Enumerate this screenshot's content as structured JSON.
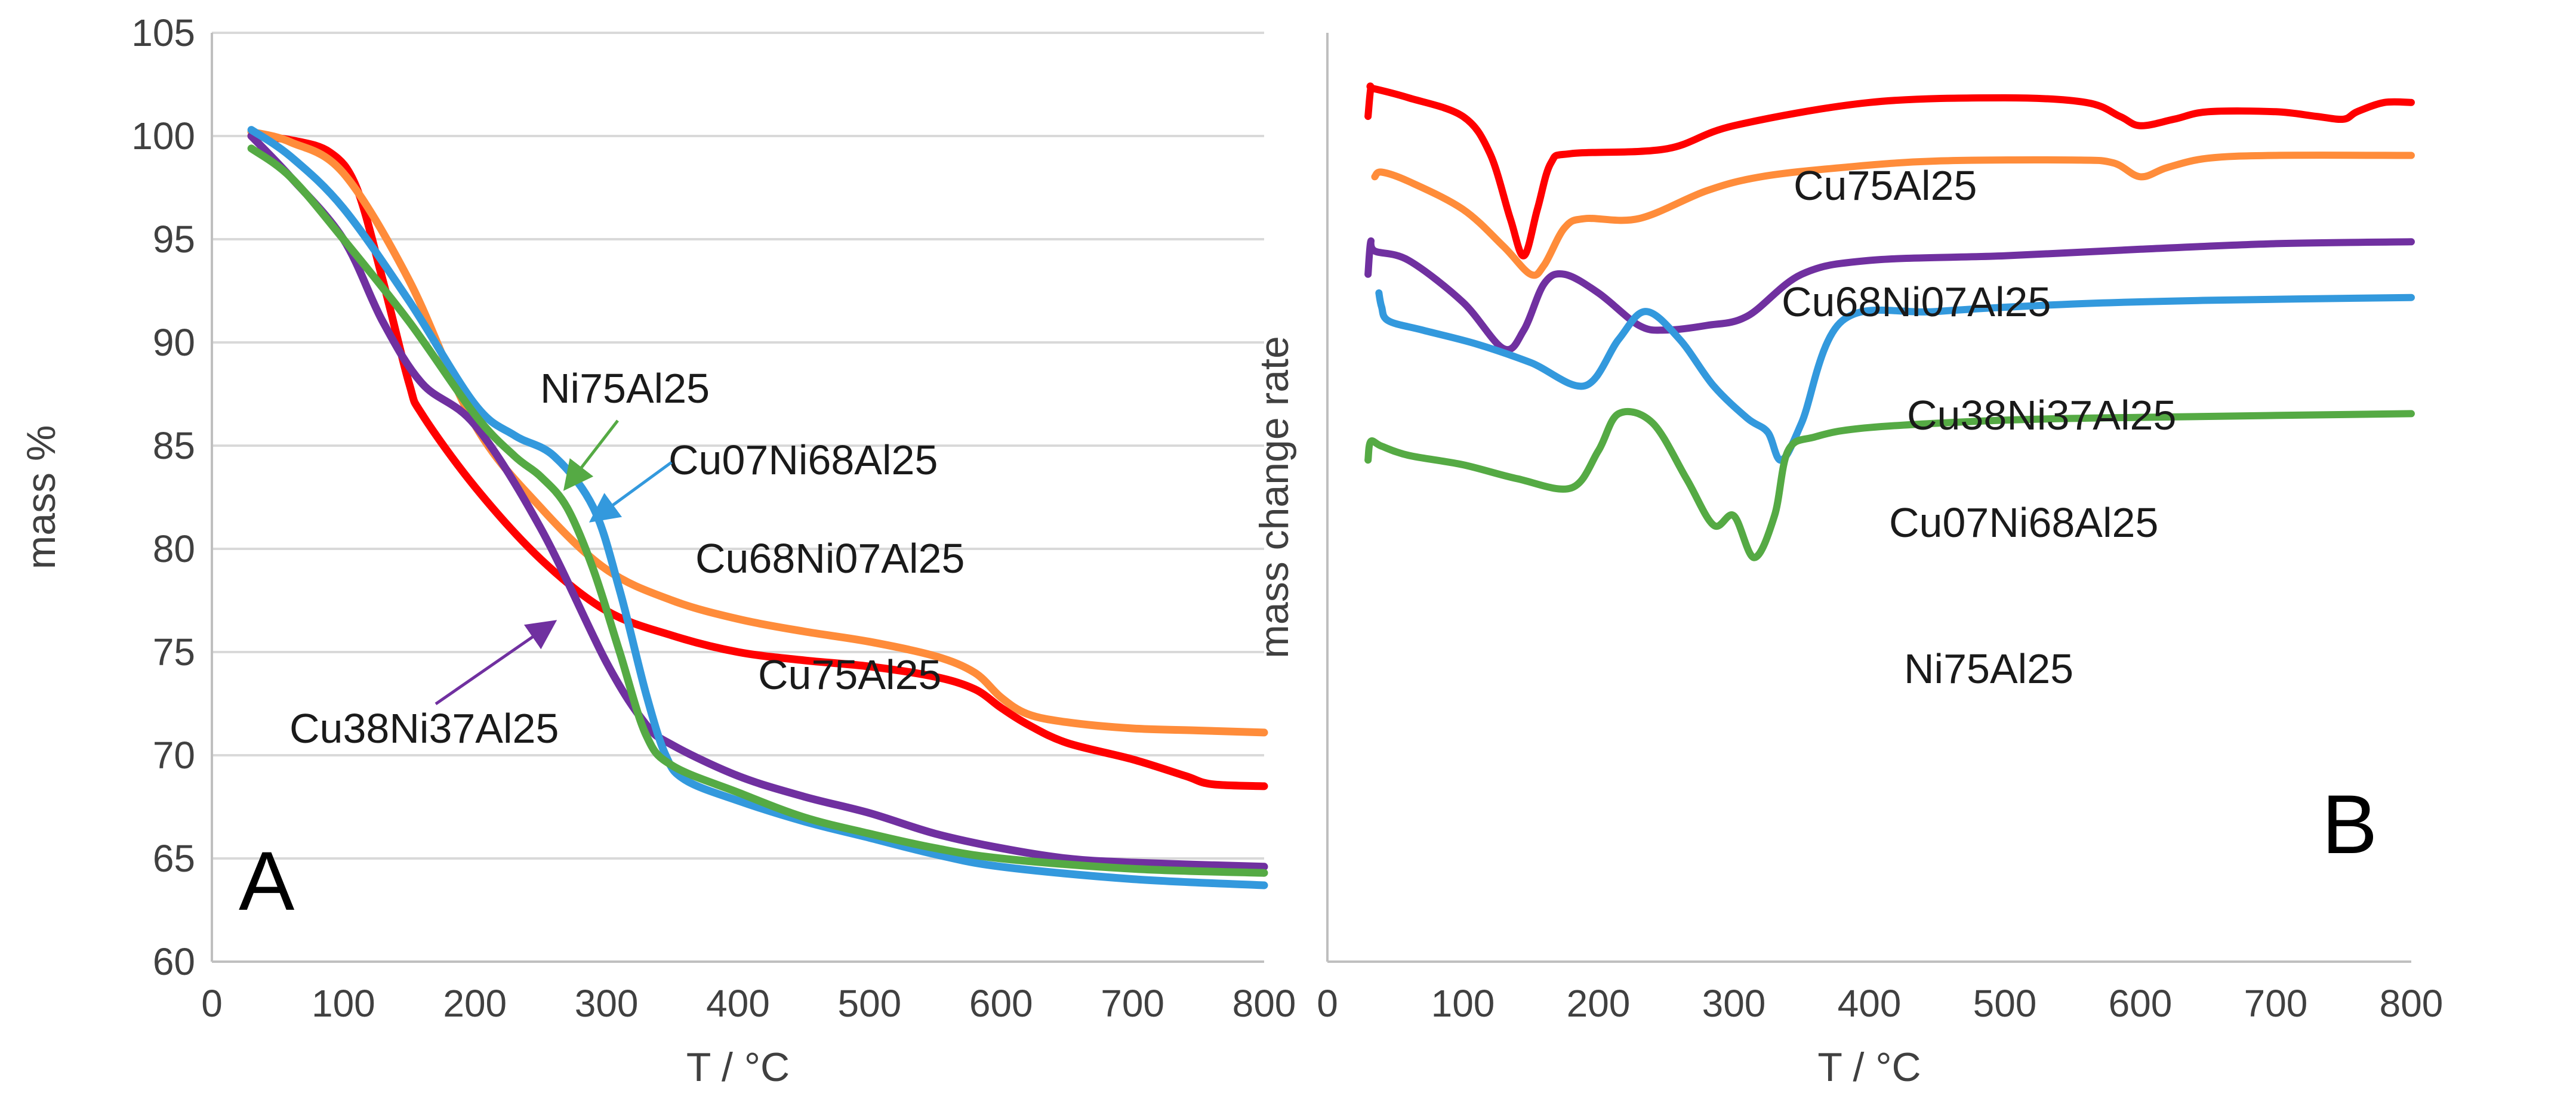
{
  "chart_data": [
    {
      "type": "line",
      "panel_letter": "A",
      "xlabel": "T / °C",
      "ylabel": "mass %",
      "xlim": [
        0,
        800
      ],
      "ylim": [
        60,
        105
      ],
      "x_ticks": [
        0,
        100,
        200,
        300,
        400,
        500,
        600,
        700,
        800
      ],
      "x_tick_labels": [
        "0",
        "100",
        "200",
        "300",
        "400",
        "500",
        "600",
        "700",
        "800"
      ],
      "y_ticks": [
        60,
        65,
        70,
        75,
        80,
        85,
        90,
        95,
        100,
        105
      ],
      "y_tick_labels": [
        "60",
        "65",
        "70",
        "75",
        "80",
        "85",
        "90",
        "95",
        "100",
        "105"
      ],
      "grid": "horizontal",
      "series": [
        {
          "name": "Cu75Al25",
          "color": "#ff0000",
          "x": [
            30,
            60,
            90,
            110,
            130,
            150,
            160,
            200,
            250,
            300,
            350,
            400,
            450,
            500,
            550,
            580,
            600,
            620,
            650,
            700,
            740,
            760,
            800
          ],
          "y": [
            100,
            99.8,
            99.2,
            97.5,
            93,
            88,
            86.5,
            83,
            79.5,
            77,
            75.8,
            75,
            74.6,
            74.3,
            73.8,
            73.2,
            72.3,
            71.5,
            70.6,
            69.8,
            69,
            68.6,
            68.5
          ]
        },
        {
          "name": "Cu68Ni07Al25",
          "color": "#ff8c3a",
          "x": [
            30,
            60,
            100,
            150,
            200,
            250,
            300,
            350,
            400,
            450,
            500,
            550,
            580,
            600,
            620,
            650,
            700,
            750,
            800
          ],
          "y": [
            100.2,
            99.7,
            98.2,
            93,
            86,
            82,
            79,
            77.5,
            76.6,
            76,
            75.5,
            74.8,
            74,
            72.8,
            72,
            71.6,
            71.3,
            71.2,
            71.1
          ]
        },
        {
          "name": "Cu38Ni37Al25",
          "color": "#7030a0",
          "x": [
            30,
            60,
            100,
            130,
            160,
            200,
            250,
            300,
            330,
            350,
            400,
            450,
            500,
            550,
            600,
            650,
            700,
            800
          ],
          "y": [
            100,
            98,
            95,
            91,
            88,
            86,
            81,
            74.5,
            71.5,
            70.5,
            69,
            68,
            67.2,
            66.2,
            65.5,
            65,
            64.8,
            64.6
          ]
        },
        {
          "name": "Cu07Ni68Al25",
          "color": "#3399dd",
          "x": [
            30,
            60,
            100,
            150,
            200,
            230,
            260,
            290,
            310,
            330,
            345,
            360,
            400,
            450,
            500,
            550,
            600,
            700,
            800
          ],
          "y": [
            100.3,
            99,
            96.5,
            92,
            87,
            85.5,
            84.5,
            82,
            78,
            73,
            70,
            68.8,
            67.8,
            66.8,
            66,
            65.2,
            64.6,
            64,
            63.7
          ]
        },
        {
          "name": "Ni75Al25",
          "color": "#55aa44",
          "x": [
            30,
            60,
            100,
            150,
            200,
            230,
            250,
            270,
            290,
            310,
            330,
            350,
            400,
            450,
            500,
            550,
            600,
            700,
            800
          ],
          "y": [
            99.4,
            98,
            95,
            91,
            86.5,
            84.5,
            83.5,
            82,
            79,
            75,
            71,
            69.5,
            68.2,
            67,
            66.2,
            65.5,
            65,
            64.5,
            64.3
          ]
        }
      ],
      "annotations": [
        {
          "text": "Ni75Al25",
          "series": "Ni75Al25"
        },
        {
          "text": "Cu07Ni68Al25",
          "series": "Cu07Ni68Al25"
        },
        {
          "text": "Cu68Ni07Al25",
          "series": "Cu68Ni07Al25"
        },
        {
          "text": "Cu75Al25",
          "series": "Cu75Al25"
        },
        {
          "text": "Cu38Ni37Al25",
          "series": "Cu38Ni37Al25"
        }
      ]
    },
    {
      "type": "line",
      "panel_letter": "B",
      "xlabel": "T / °C",
      "ylabel": "mass change rate",
      "xlim": [
        0,
        800
      ],
      "ylim": [
        0,
        100
      ],
      "x_ticks": [
        0,
        100,
        200,
        300,
        400,
        500,
        600,
        700,
        800
      ],
      "x_tick_labels": [
        "0",
        "100",
        "200",
        "300",
        "400",
        "500",
        "600",
        "700",
        "800"
      ],
      "y_ticks_shown": false,
      "grid": "none",
      "series": [
        {
          "name": "Cu75Al25",
          "color": "#ff0000",
          "x": [
            30,
            32,
            34,
            60,
            100,
            120,
            135,
            145,
            155,
            165,
            180,
            250,
            300,
            400,
            500,
            560,
            585,
            600,
            625,
            650,
            700,
            730,
            750,
            760,
            780,
            800
          ],
          "y": [
            91,
            94,
            94,
            93,
            91,
            87,
            80,
            76,
            81,
            86,
            87,
            87.5,
            90,
            92.5,
            93,
            92.5,
            91,
            90,
            90.7,
            91.5,
            91.5,
            91,
            90.7,
            91.5,
            92.5,
            92.5
          ]
        },
        {
          "name": "Cu68Ni07Al25",
          "color": "#ff8c3a",
          "x": [
            35,
            40,
            60,
            100,
            130,
            150,
            160,
            175,
            190,
            230,
            280,
            320,
            380,
            450,
            550,
            580,
            600,
            620,
            650,
            700,
            800
          ],
          "y": [
            84.5,
            85,
            84,
            81,
            77,
            74,
            75,
            79,
            80,
            80,
            83,
            84.5,
            85.5,
            86.2,
            86.3,
            86,
            84.5,
            85.5,
            86.5,
            86.8,
            86.8
          ]
        },
        {
          "name": "Cu38Ni37Al25",
          "color": "#7030a0",
          "x": [
            30,
            32,
            35,
            60,
            100,
            130,
            145,
            160,
            175,
            200,
            230,
            250,
            280,
            310,
            350,
            400,
            500,
            600,
            700,
            800
          ],
          "y": [
            74,
            77.5,
            76.5,
            75.5,
            71,
            66,
            68,
            73,
            74,
            72,
            68.5,
            68,
            68.5,
            69.5,
            74,
            75.5,
            76,
            76.7,
            77.3,
            77.5
          ]
        },
        {
          "name": "Cu07Ni68Al25",
          "color": "#3399dd",
          "x": [
            38,
            40,
            45,
            70,
            110,
            150,
            190,
            215,
            235,
            260,
            285,
            310,
            325,
            335,
            350,
            380,
            450,
            550,
            650,
            800
          ],
          "y": [
            72,
            70.5,
            69,
            68,
            66.5,
            64.5,
            62,
            67,
            70,
            67,
            62,
            58.5,
            57,
            54,
            58,
            69,
            70,
            70.8,
            71.2,
            71.5
          ]
        },
        {
          "name": "Ni75Al25",
          "color": "#55aa44",
          "x": [
            30,
            32,
            40,
            60,
            100,
            140,
            180,
            200,
            215,
            240,
            265,
            285,
            300,
            315,
            330,
            340,
            360,
            400,
            500,
            600,
            800
          ],
          "y": [
            54,
            56,
            55.5,
            54.5,
            53.5,
            52,
            51,
            55,
            59,
            58,
            52,
            47,
            48,
            43.5,
            48,
            55,
            56.5,
            57.5,
            58.3,
            58.6,
            59
          ]
        }
      ],
      "annotations": [
        {
          "text": "Cu75Al25",
          "series": "Cu75Al25"
        },
        {
          "text": "Cu68Ni07Al25",
          "series": "Cu68Ni07Al25"
        },
        {
          "text": "Cu38Ni37Al25",
          "series": "Cu38Ni37Al25"
        },
        {
          "text": "Cu07Ni68Al25",
          "series": "Cu07Ni68Al25"
        },
        {
          "text": "Ni75Al25",
          "series": "Ni75Al25"
        }
      ]
    }
  ]
}
